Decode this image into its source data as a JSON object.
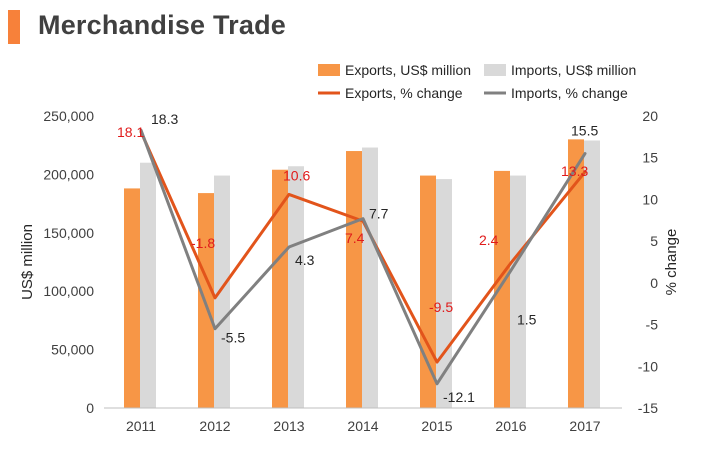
{
  "header": {
    "title": "Merchandise Trade",
    "accent_color": "#F7813A"
  },
  "chart_data": {
    "type": "bar",
    "categories": [
      "2011",
      "2012",
      "2013",
      "2014",
      "2015",
      "2016",
      "2017"
    ],
    "ylabel": "US$ million",
    "ylabel_right": "% change",
    "ylim": [
      0,
      250000
    ],
    "ylim_right": [
      -15,
      20
    ],
    "yticks": [
      0,
      50000,
      100000,
      150000,
      200000,
      250000
    ],
    "yticks_labels": [
      "0",
      "50,000",
      "100,000",
      "150,000",
      "200,000",
      "250,000"
    ],
    "yticks_right": [
      -15,
      -10,
      -5,
      0,
      5,
      10,
      15,
      20
    ],
    "yticks_right_labels": [
      "-15",
      "-10",
      "-5",
      "0",
      "5",
      "10",
      "15",
      "20"
    ],
    "grid": false,
    "legend_position": "top-right",
    "series": [
      {
        "name": "Exports, US$ million",
        "kind": "bar",
        "axis": "left",
        "color": "#F79646",
        "values": [
          188000,
          184000,
          204000,
          220000,
          199000,
          203000,
          230000
        ]
      },
      {
        "name": "Imports, US$ million",
        "kind": "bar",
        "axis": "left",
        "color": "#D9D9D9",
        "values": [
          210000,
          199000,
          207000,
          223000,
          196000,
          199000,
          229000
        ]
      },
      {
        "name": "Exports, % change",
        "kind": "line",
        "axis": "right",
        "color": "#E2541B",
        "label_color": "#E01B1B",
        "values": [
          18.1,
          -1.8,
          10.6,
          7.4,
          -9.5,
          2.4,
          13.3
        ],
        "labels": [
          "18.1",
          "-1.8",
          "10.6",
          "7.4",
          "-9.5",
          "2.4",
          "13.3"
        ]
      },
      {
        "name": "Imports, % change",
        "kind": "line",
        "axis": "right",
        "color": "#808080",
        "label_color": "#262626",
        "values": [
          18.3,
          -5.5,
          4.3,
          7.7,
          -12.1,
          1.5,
          15.5
        ],
        "labels": [
          "18.3",
          "-5.5",
          "4.3",
          "7.7",
          "-12.1",
          "1.5",
          "15.5"
        ]
      }
    ]
  }
}
